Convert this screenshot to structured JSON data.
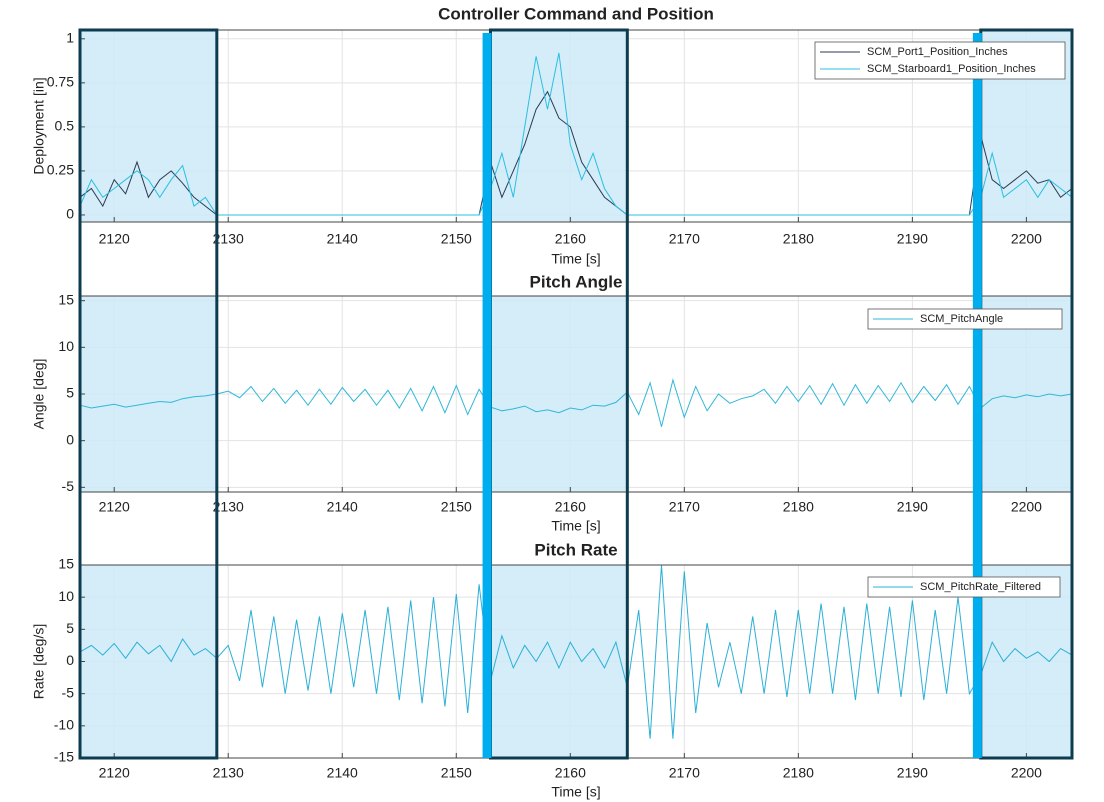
{
  "chart_data": [
    {
      "type": "line",
      "title": "Controller Command and Position",
      "x_label": "Time [s]",
      "y_label": "Deployment [in]",
      "x": [
        2117,
        2118,
        2119,
        2120,
        2121,
        2122,
        2123,
        2124,
        2125,
        2126,
        2127,
        2128,
        2129,
        2130,
        2131,
        2132,
        2133,
        2134,
        2135,
        2136,
        2137,
        2138,
        2139,
        2140,
        2141,
        2142,
        2143,
        2144,
        2145,
        2146,
        2147,
        2148,
        2149,
        2150,
        2151,
        2152,
        2153,
        2154,
        2155,
        2156,
        2157,
        2158,
        2159,
        2160,
        2161,
        2162,
        2163,
        2164,
        2165,
        2166,
        2167,
        2168,
        2169,
        2170,
        2171,
        2172,
        2173,
        2174,
        2175,
        2176,
        2177,
        2178,
        2179,
        2180,
        2181,
        2182,
        2183,
        2184,
        2185,
        2186,
        2187,
        2188,
        2189,
        2190,
        2191,
        2192,
        2193,
        2194,
        2195,
        2196,
        2197,
        2198,
        2199,
        2200,
        2201,
        2202,
        2203,
        2204
      ],
      "series": [
        {
          "name": "SCM_Port1_Position_Inches",
          "color": "#2b3a55",
          "values": [
            0.1,
            0.15,
            0.05,
            0.2,
            0.12,
            0.3,
            0.1,
            0.2,
            0.25,
            0.18,
            0.1,
            0.05,
            0,
            0,
            0,
            0,
            0,
            0,
            0,
            0,
            0,
            0,
            0,
            0,
            0,
            0,
            0,
            0,
            0,
            0,
            0,
            0,
            0,
            0,
            0,
            0,
            0.3,
            0.1,
            0.25,
            0.4,
            0.6,
            0.7,
            0.55,
            0.5,
            0.3,
            0.2,
            0.1,
            0.05,
            0,
            0,
            0,
            0,
            0,
            0,
            0,
            0,
            0,
            0,
            0,
            0,
            0,
            0,
            0,
            0,
            0,
            0,
            0,
            0,
            0,
            0,
            0,
            0,
            0,
            0,
            0,
            0,
            0,
            0,
            0,
            0.45,
            0.2,
            0.15,
            0.2,
            0.25,
            0.18,
            0.2,
            0.1,
            0.15
          ]
        },
        {
          "name": "SCM_Starboard1_Position_Inches",
          "color": "#29c0e0",
          "values": [
            0.05,
            0.2,
            0.1,
            0.15,
            0.2,
            0.25,
            0.2,
            0.1,
            0.2,
            0.28,
            0.05,
            0.1,
            0,
            0,
            0,
            0,
            0,
            0,
            0,
            0,
            0,
            0,
            0,
            0,
            0,
            0,
            0,
            0,
            0,
            0,
            0,
            0,
            0,
            0,
            0,
            0,
            0.15,
            0.35,
            0.1,
            0.5,
            0.9,
            0.6,
            0.92,
            0.4,
            0.2,
            0.35,
            0.15,
            0.05,
            0,
            0,
            0,
            0,
            0,
            0,
            0,
            0,
            0,
            0,
            0,
            0,
            0,
            0,
            0,
            0,
            0,
            0,
            0,
            0,
            0,
            0,
            0,
            0,
            0,
            0,
            0,
            0,
            0,
            0,
            0,
            0.1,
            0.35,
            0.1,
            0.15,
            0.2,
            0.1,
            0.2,
            0.15,
            0.1
          ]
        }
      ],
      "xlim": [
        2117,
        2204
      ],
      "xticks": [
        2120,
        2130,
        2140,
        2150,
        2160,
        2170,
        2180,
        2190,
        2200
      ],
      "ylim": [
        -0.04,
        1.05
      ],
      "yticks": [
        0,
        0.25,
        0.5,
        0.75,
        1
      ],
      "grid": true,
      "legend": "upper right"
    },
    {
      "type": "line",
      "title": "Pitch Angle",
      "x_label": "Time [s]",
      "y_label": "Angle [deg]",
      "x": [
        2117,
        2118,
        2119,
        2120,
        2121,
        2122,
        2123,
        2124,
        2125,
        2126,
        2127,
        2128,
        2129,
        2130,
        2131,
        2132,
        2133,
        2134,
        2135,
        2136,
        2137,
        2138,
        2139,
        2140,
        2141,
        2142,
        2143,
        2144,
        2145,
        2146,
        2147,
        2148,
        2149,
        2150,
        2151,
        2152,
        2153,
        2154,
        2155,
        2156,
        2157,
        2158,
        2159,
        2160,
        2161,
        2162,
        2163,
        2164,
        2165,
        2166,
        2167,
        2168,
        2169,
        2170,
        2171,
        2172,
        2173,
        2174,
        2175,
        2176,
        2177,
        2178,
        2179,
        2180,
        2181,
        2182,
        2183,
        2184,
        2185,
        2186,
        2187,
        2188,
        2189,
        2190,
        2191,
        2192,
        2193,
        2194,
        2195,
        2196,
        2197,
        2198,
        2199,
        2200,
        2201,
        2202,
        2203,
        2204
      ],
      "series": [
        {
          "name": "SCM_PitchAngle",
          "color": "#30b8d8",
          "values": [
            3.8,
            3.5,
            3.7,
            3.9,
            3.6,
            3.8,
            4.0,
            4.2,
            4.1,
            4.5,
            4.7,
            4.8,
            5.0,
            5.3,
            4.6,
            5.8,
            4.2,
            5.6,
            4.0,
            5.4,
            3.8,
            5.5,
            3.9,
            5.7,
            4.2,
            5.5,
            3.8,
            5.4,
            3.5,
            5.6,
            3.2,
            5.8,
            3.0,
            5.9,
            2.8,
            5.5,
            3.6,
            3.2,
            3.4,
            3.7,
            3.1,
            3.3,
            3.0,
            3.5,
            3.3,
            3.8,
            3.7,
            4.1,
            5.2,
            2.8,
            6.2,
            1.5,
            6.5,
            2.5,
            5.8,
            3.2,
            5.0,
            4.0,
            4.5,
            4.8,
            5.5,
            4.0,
            5.8,
            4.2,
            5.9,
            3.9,
            6.1,
            3.8,
            6.0,
            4.0,
            5.9,
            4.2,
            6.2,
            4.1,
            5.8,
            4.3,
            6.0,
            3.9,
            5.8,
            3.5,
            4.5,
            4.8,
            4.6,
            4.9,
            4.7,
            5.0,
            4.8,
            5.0
          ]
        }
      ],
      "xlim": [
        2117,
        2204
      ],
      "xticks": [
        2120,
        2130,
        2140,
        2150,
        2160,
        2170,
        2180,
        2190,
        2200
      ],
      "ylim": [
        -5.5,
        15.5
      ],
      "yticks": [
        -5,
        0,
        5,
        10,
        15
      ],
      "grid": true,
      "legend": "upper right"
    },
    {
      "type": "line",
      "title": "Pitch Rate",
      "x_label": "Time [s]",
      "y_label": "Rate [deg/s]",
      "x": [
        2117,
        2118,
        2119,
        2120,
        2121,
        2122,
        2123,
        2124,
        2125,
        2126,
        2127,
        2128,
        2129,
        2130,
        2131,
        2132,
        2133,
        2134,
        2135,
        2136,
        2137,
        2138,
        2139,
        2140,
        2141,
        2142,
        2143,
        2144,
        2145,
        2146,
        2147,
        2148,
        2149,
        2150,
        2151,
        2152,
        2153,
        2154,
        2155,
        2156,
        2157,
        2158,
        2159,
        2160,
        2161,
        2162,
        2163,
        2164,
        2165,
        2166,
        2167,
        2168,
        2169,
        2170,
        2171,
        2172,
        2173,
        2174,
        2175,
        2176,
        2177,
        2178,
        2179,
        2180,
        2181,
        2182,
        2183,
        2184,
        2185,
        2186,
        2187,
        2188,
        2189,
        2190,
        2191,
        2192,
        2193,
        2194,
        2195,
        2196,
        2197,
        2198,
        2199,
        2200,
        2201,
        2202,
        2203,
        2204
      ],
      "series": [
        {
          "name": "SCM_PitchRate_Filtered",
          "color": "#2bb0d8",
          "values": [
            1.5,
            2.5,
            1.0,
            2.8,
            0.5,
            3.0,
            1.2,
            2.5,
            0.0,
            3.5,
            1.0,
            2.0,
            0.5,
            2.5,
            -3,
            8,
            -4,
            7,
            -5,
            6.5,
            -4.5,
            7,
            -5,
            7.5,
            -4,
            8,
            -5,
            8.5,
            -6,
            9.5,
            -6.5,
            10,
            -7,
            10.5,
            -8,
            12,
            -3,
            4,
            -1,
            2.5,
            0,
            3,
            -1,
            3,
            0,
            2,
            -1,
            3,
            -4,
            8,
            -12,
            15,
            -12,
            14,
            -8,
            6,
            -4,
            3,
            -5,
            7,
            -5,
            8,
            -5.5,
            8,
            -5,
            9,
            -5,
            8.5,
            -6,
            9,
            -5,
            8.5,
            -5.5,
            9.5,
            -6,
            8,
            -5,
            10,
            -5,
            -2,
            3,
            0,
            2,
            0.5,
            1.5,
            0,
            2,
            1
          ]
        }
      ],
      "xlim": [
        2117,
        2204
      ],
      "xticks": [
        2120,
        2130,
        2140,
        2150,
        2160,
        2170,
        2180,
        2190,
        2200
      ],
      "ylim": [
        -15,
        15
      ],
      "yticks": [
        -15,
        -10,
        -5,
        0,
        5,
        10,
        15
      ],
      "grid": true,
      "legend": "upper right"
    }
  ],
  "highlights": {
    "ranges": [
      [
        2117,
        2129
      ],
      [
        2153,
        2165
      ],
      [
        2196,
        2204
      ]
    ],
    "lines": [
      2152.7,
      2195.7
    ]
  }
}
